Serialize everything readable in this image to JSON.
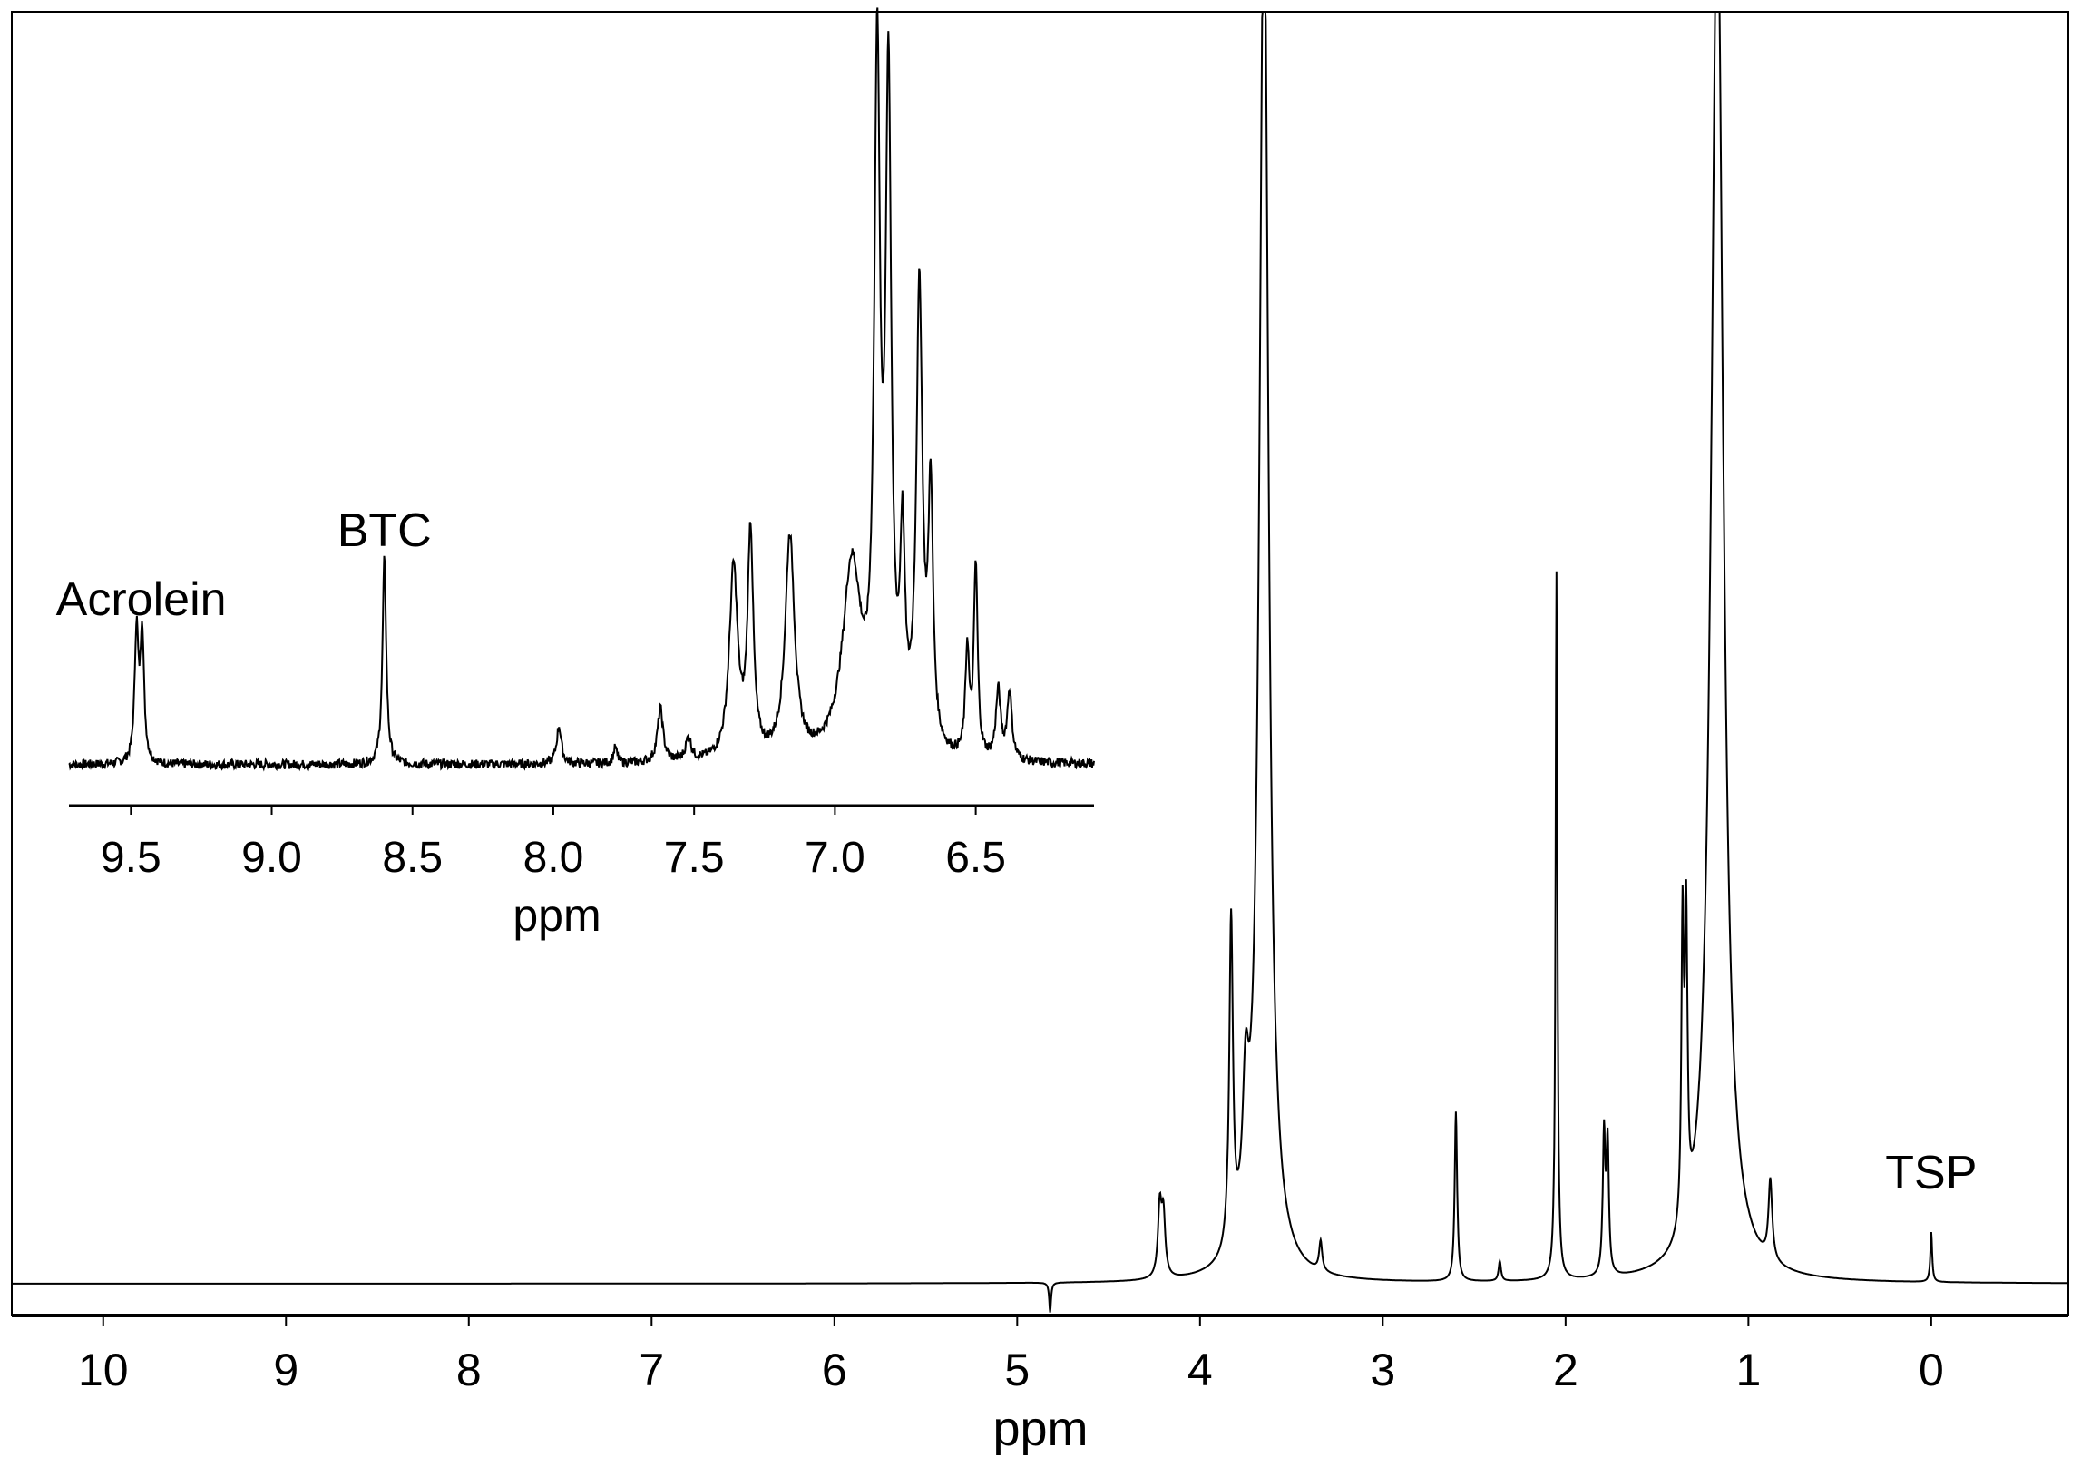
{
  "chart_data": [
    {
      "type": "line",
      "title": "",
      "xlabel": "ppm",
      "ylabel": "",
      "xlim": [
        10.5,
        -0.75
      ],
      "x_reversed": true,
      "xticks": [
        10,
        9,
        8,
        7,
        6,
        5,
        4,
        3,
        2,
        1,
        0
      ],
      "grid": false,
      "series": [
        {
          "peaks": [
            {
              "ppm": 4.82,
              "height": -0.03,
              "width": 0.006
            },
            {
              "ppm": 4.22,
              "height": 0.07,
              "width": 0.012
            },
            {
              "ppm": 4.2,
              "height": 0.06,
              "width": 0.012
            },
            {
              "ppm": 3.83,
              "height": 0.33,
              "width": 0.012
            },
            {
              "ppm": 3.75,
              "height": 0.13,
              "width": 0.02
            },
            {
              "ppm": 3.65,
              "height": 1.4,
              "width": 0.03
            },
            {
              "ppm": 3.34,
              "height": 0.03,
              "width": 0.01
            },
            {
              "ppm": 2.6,
              "height": 0.17,
              "width": 0.008
            },
            {
              "ppm": 2.36,
              "height": 0.02,
              "width": 0.008
            },
            {
              "ppm": 2.05,
              "height": 0.71,
              "width": 0.006
            },
            {
              "ppm": 1.79,
              "height": 0.14,
              "width": 0.008
            },
            {
              "ppm": 1.77,
              "height": 0.13,
              "width": 0.008
            },
            {
              "ppm": 1.36,
              "height": 0.3,
              "width": 0.008
            },
            {
              "ppm": 1.34,
              "height": 0.29,
              "width": 0.008
            },
            {
              "ppm": 1.17,
              "height": 1.4,
              "width": 0.04
            },
            {
              "ppm": 0.88,
              "height": 0.08,
              "width": 0.012
            },
            {
              "ppm": 0.0,
              "height": 0.05,
              "width": 0.006
            }
          ]
        }
      ],
      "annotations": [
        {
          "text": "TSP",
          "ppm": 0.0
        }
      ]
    },
    {
      "type": "line",
      "title": "",
      "xlabel": "ppm",
      "ylabel": "",
      "xlim": [
        9.72,
        6.08
      ],
      "x_reversed": true,
      "xticks": [
        "9.5",
        "9.0",
        "8.5",
        "8.0",
        "7.5",
        "7.0",
        "6.5"
      ],
      "grid": false,
      "series": [
        {
          "peaks": [
            {
              "ppm": 9.48,
              "height": 0.17,
              "width": 0.008
            },
            {
              "ppm": 9.46,
              "height": 0.17,
              "width": 0.008
            },
            {
              "ppm": 8.6,
              "height": 0.27,
              "width": 0.008
            },
            {
              "ppm": 7.98,
              "height": 0.05,
              "width": 0.01
            },
            {
              "ppm": 7.78,
              "height": 0.02,
              "width": 0.008
            },
            {
              "ppm": 7.62,
              "height": 0.07,
              "width": 0.012
            },
            {
              "ppm": 7.52,
              "height": 0.03,
              "width": 0.012
            },
            {
              "ppm": 7.36,
              "height": 0.25,
              "width": 0.018
            },
            {
              "ppm": 7.3,
              "height": 0.29,
              "width": 0.012
            },
            {
              "ppm": 7.16,
              "height": 0.29,
              "width": 0.02
            },
            {
              "ppm": 6.94,
              "height": 0.25,
              "width": 0.04
            },
            {
              "ppm": 6.85,
              "height": 0.88,
              "width": 0.012
            },
            {
              "ppm": 6.81,
              "height": 0.85,
              "width": 0.012
            },
            {
              "ppm": 6.76,
              "height": 0.25,
              "width": 0.01
            },
            {
              "ppm": 6.7,
              "height": 0.6,
              "width": 0.013
            },
            {
              "ppm": 6.66,
              "height": 0.33,
              "width": 0.01
            },
            {
              "ppm": 6.53,
              "height": 0.14,
              "width": 0.008
            },
            {
              "ppm": 6.5,
              "height": 0.25,
              "width": 0.008
            },
            {
              "ppm": 6.42,
              "height": 0.09,
              "width": 0.01
            },
            {
              "ppm": 6.38,
              "height": 0.09,
              "width": 0.01
            }
          ]
        }
      ],
      "annotations": [
        {
          "text": "Acrolein",
          "ppm": 9.47
        },
        {
          "text": "BTC",
          "ppm": 8.6
        }
      ]
    }
  ]
}
